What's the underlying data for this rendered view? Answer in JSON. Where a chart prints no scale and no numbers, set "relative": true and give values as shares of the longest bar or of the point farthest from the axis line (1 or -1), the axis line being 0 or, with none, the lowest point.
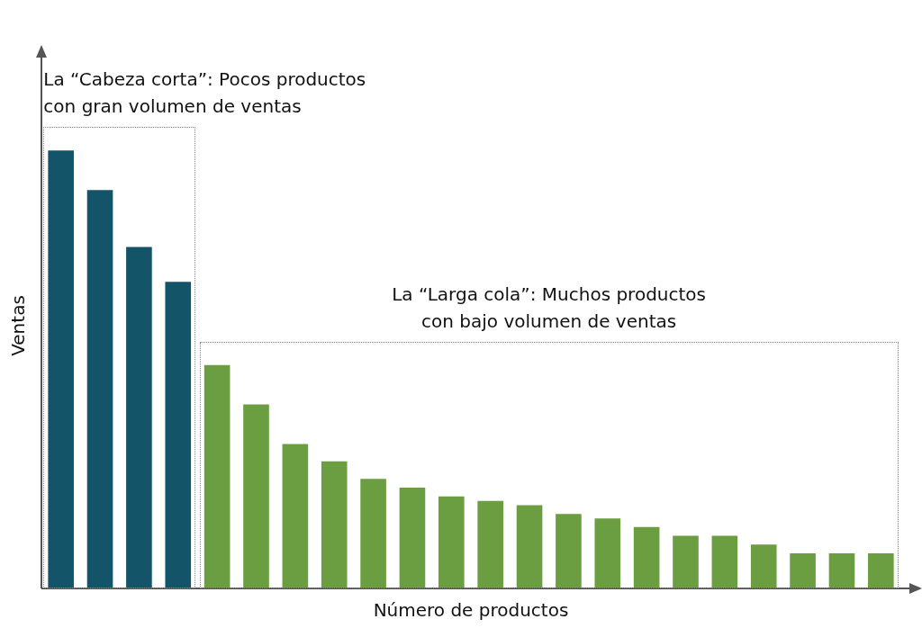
{
  "chart_data": {
    "type": "bar",
    "relative": true,
    "xlabel": "Número de productos",
    "ylabel": "Ventas",
    "categories": [
      null,
      null,
      null,
      null,
      null,
      null,
      null,
      null,
      null,
      null,
      null,
      null,
      null,
      null,
      null,
      null,
      null,
      null,
      null,
      null,
      null,
      null
    ],
    "values": [
      1,
      0.91,
      0.78,
      0.7,
      0.51,
      0.42,
      0.33,
      0.29,
      0.25,
      0.23,
      0.21,
      0.2,
      0.19,
      0.17,
      0.16,
      0.14,
      0.12,
      0.12,
      0.1,
      0.08,
      0.08,
      0.08
    ],
    "colors": [
      "#135469",
      "#135469",
      "#135469",
      "#135469",
      "#6a9e40",
      "#6a9e40",
      "#6a9e40",
      "#6a9e40",
      "#6a9e40",
      "#6a9e40",
      "#6a9e40",
      "#6a9e40",
      "#6a9e40",
      "#6a9e40",
      "#6a9e40",
      "#6a9e40",
      "#6a9e40",
      "#6a9e40",
      "#6a9e40",
      "#6a9e40",
      "#6a9e40",
      "#6a9e40"
    ],
    "annotations": [
      "La “Cabeza corta”: Pocos productos\ncon gran volumen de ventas",
      "La “Larga cola”: Muchos productos\ncon bajo volumen de ventas"
    ],
    "grid": false,
    "legend": false
  }
}
